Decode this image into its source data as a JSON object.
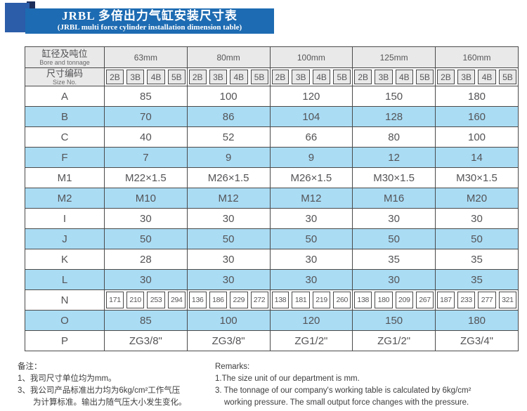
{
  "header": {
    "title_zh": "JRBL 多倍出力气缸安装尺寸表",
    "title_en": "(JRBL multi force cylinder installation dimension table)"
  },
  "table": {
    "corner_row1_zh": "缸径及吨位",
    "corner_row1_en": "Bore and tonnage",
    "corner_row2_zh": "尺寸编码",
    "corner_row2_en": "Size No.",
    "bore_columns": [
      "63mm",
      "80mm",
      "100mm",
      "125mm",
      "160mm"
    ],
    "size_codes": [
      "2B",
      "3B",
      "4B",
      "5B"
    ],
    "rows": [
      {
        "label": "A",
        "type": "merged",
        "values": [
          "85",
          "100",
          "120",
          "150",
          "180"
        ]
      },
      {
        "label": "B",
        "type": "merged",
        "values": [
          "70",
          "86",
          "104",
          "128",
          "160"
        ]
      },
      {
        "label": "C",
        "type": "merged",
        "values": [
          "40",
          "52",
          "66",
          "80",
          "100"
        ]
      },
      {
        "label": "F",
        "type": "merged",
        "values": [
          "7",
          "9",
          "9",
          "12",
          "14"
        ]
      },
      {
        "label": "M1",
        "type": "merged",
        "values": [
          "M22×1.5",
          "M26×1.5",
          "M26×1.5",
          "M30×1.5",
          "M30×1.5"
        ]
      },
      {
        "label": "M2",
        "type": "merged",
        "values": [
          "M10",
          "M12",
          "M12",
          "M16",
          "M20"
        ]
      },
      {
        "label": "I",
        "type": "merged",
        "values": [
          "30",
          "30",
          "30",
          "30",
          "30"
        ]
      },
      {
        "label": "J",
        "type": "merged",
        "values": [
          "50",
          "50",
          "50",
          "50",
          "50"
        ]
      },
      {
        "label": "K",
        "type": "merged",
        "values": [
          "28",
          "30",
          "30",
          "35",
          "35"
        ]
      },
      {
        "label": "L",
        "type": "merged",
        "values": [
          "30",
          "30",
          "30",
          "30",
          "35"
        ]
      },
      {
        "label": "N",
        "type": "per_size",
        "values": [
          "171",
          "210",
          "253",
          "294",
          "136",
          "186",
          "229",
          "272",
          "138",
          "181",
          "219",
          "260",
          "138",
          "180",
          "209",
          "267",
          "187",
          "233",
          "277",
          "321"
        ]
      },
      {
        "label": "O",
        "type": "merged",
        "values": [
          "85",
          "100",
          "120",
          "150",
          "180"
        ]
      },
      {
        "label": "P",
        "type": "merged",
        "values": [
          "ZG3/8\"",
          "ZG3/8\"",
          "ZG1/2\"",
          "ZG1/2\"",
          "ZG3/4\""
        ]
      }
    ]
  },
  "notes": {
    "zh": {
      "heading": "备注：",
      "lines": [
        "1、我司尺寸单位均为mm。",
        "3、我公司产品标准出力均为6kg/cm²工作气压",
        "为计算标准。输出力随气压大小发生变化。"
      ]
    },
    "en": {
      "heading": "Remarks:",
      "lines": [
        "1.The size unit of our department is mm.",
        "3. The tonnage of our company's working table is calculated by 6kg/cm²",
        "working pressure. The small output force changes with the pressure."
      ]
    }
  },
  "colors": {
    "banner_blue": "#1d6bb2",
    "navy_corner": "#1c2d5a",
    "logo_square_blue": "#2b5da9",
    "row_highlight_blue": "#aadcf4",
    "header_gray": "#e9e9e9",
    "table_border": "#4a4a4a"
  }
}
